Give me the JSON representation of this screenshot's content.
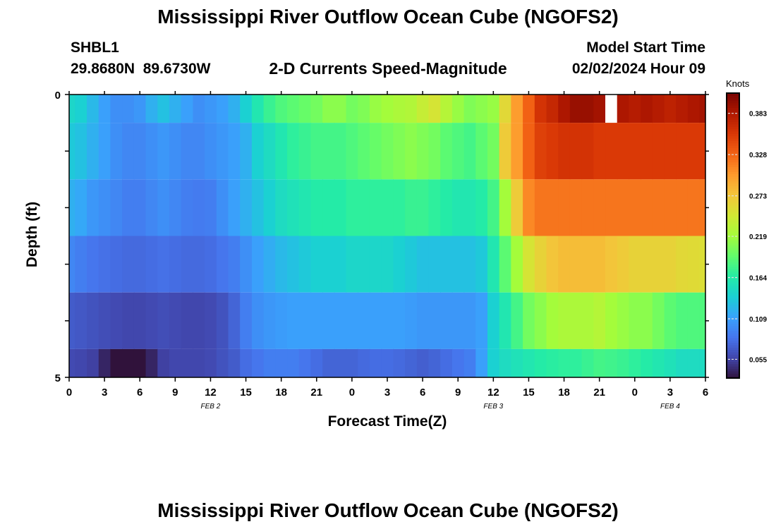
{
  "header": {
    "title": "Mississippi River Outflow Ocean Cube (NGOFS2)",
    "station_id": "SHBL1",
    "coords": "29.8680N  89.6730W",
    "subtitle": "2-D Currents Speed-Magnitude",
    "start_label": "Model Start Time",
    "start_value": "02/02/2024 Hour 09",
    "bottom_title": "Mississippi River Outflow Ocean Cube (NGOFS2)"
  },
  "colors": {
    "scale": [
      "#30123b",
      "#4145ab",
      "#4675ed",
      "#39a2fc",
      "#1bcfd4",
      "#24eca6",
      "#61fc6c",
      "#a4fc3b",
      "#d1e834",
      "#f3c63a",
      "#fe9b2d",
      "#f36315",
      "#d93806",
      "#b11901",
      "#7a0402"
    ]
  },
  "chart_data": {
    "type": "heatmap",
    "title": "2-D Currents Speed-Magnitude",
    "xlabel": "Forecast Time(Z)",
    "ylabel": "Depth (ft)",
    "x_tick_labels": [
      "0",
      "3",
      "6",
      "9",
      "12",
      "15",
      "18",
      "21",
      "0",
      "3",
      "6",
      "9",
      "12",
      "15",
      "18",
      "21",
      "0",
      "3",
      "6"
    ],
    "x_tick_hours": [
      0,
      3,
      6,
      9,
      12,
      15,
      18,
      21,
      24,
      27,
      30,
      33,
      36,
      39,
      42,
      45,
      48,
      51,
      54
    ],
    "date_labels": [
      {
        "label": "FEB 2",
        "hour": 12
      },
      {
        "label": "FEB 3",
        "hour": 36
      },
      {
        "label": "FEB 4",
        "hour": 51
      }
    ],
    "y_tick_labels": [
      "0",
      "5"
    ],
    "ylim": [
      0,
      5
    ],
    "layers": [
      {
        "depth_top": 0.0,
        "depth_bottom": 0.5
      },
      {
        "depth_top": 0.5,
        "depth_bottom": 1.5
      },
      {
        "depth_top": 1.5,
        "depth_bottom": 2.5
      },
      {
        "depth_top": 2.5,
        "depth_bottom": 3.5
      },
      {
        "depth_top": 3.5,
        "depth_bottom": 4.5
      },
      {
        "depth_top": 4.5,
        "depth_bottom": 5.0
      }
    ],
    "hours": [
      0,
      1,
      2,
      3,
      4,
      5,
      6,
      7,
      8,
      9,
      10,
      11,
      12,
      13,
      14,
      15,
      16,
      17,
      18,
      19,
      20,
      21,
      22,
      23,
      24,
      25,
      26,
      27,
      28,
      29,
      30,
      31,
      32,
      33,
      34,
      35,
      36,
      37,
      38,
      39,
      40,
      41,
      42,
      43,
      44,
      45,
      46,
      47,
      48,
      49,
      50,
      51,
      52,
      53,
      54
    ],
    "values": [
      [
        0.145,
        0.14,
        0.125,
        0.11,
        0.1,
        0.1,
        0.105,
        0.12,
        0.13,
        0.12,
        0.11,
        0.1,
        0.105,
        0.11,
        0.12,
        0.14,
        0.16,
        0.175,
        0.185,
        0.19,
        0.195,
        0.2,
        0.21,
        0.21,
        0.2,
        0.205,
        0.215,
        0.22,
        0.225,
        0.228,
        0.24,
        0.25,
        0.23,
        0.215,
        0.205,
        0.21,
        0.215,
        0.26,
        0.3,
        0.33,
        0.36,
        0.37,
        0.385,
        0.395,
        0.395,
        0.39,
        null,
        0.385,
        0.38,
        0.385,
        0.38,
        0.375,
        0.38,
        0.385,
        0.39
      ],
      [
        0.135,
        0.13,
        0.12,
        0.11,
        0.1,
        0.095,
        0.095,
        0.1,
        0.105,
        0.1,
        0.095,
        0.095,
        0.1,
        0.105,
        0.11,
        0.12,
        0.14,
        0.15,
        0.16,
        0.17,
        0.175,
        0.18,
        0.18,
        0.18,
        0.185,
        0.19,
        0.195,
        0.2,
        0.205,
        0.21,
        0.205,
        0.2,
        0.19,
        0.185,
        0.18,
        0.19,
        0.2,
        0.27,
        0.3,
        0.33,
        0.35,
        0.355,
        0.36,
        0.36,
        0.36,
        0.355,
        0.355,
        0.355,
        0.355,
        0.355,
        0.355,
        0.355,
        0.355,
        0.355,
        0.355
      ],
      [
        0.12,
        0.115,
        0.105,
        0.1,
        0.095,
        0.09,
        0.09,
        0.095,
        0.1,
        0.095,
        0.09,
        0.088,
        0.09,
        0.1,
        0.11,
        0.12,
        0.13,
        0.14,
        0.15,
        0.155,
        0.16,
        0.165,
        0.165,
        0.165,
        0.17,
        0.17,
        0.17,
        0.17,
        0.17,
        0.175,
        0.175,
        0.17,
        0.165,
        0.16,
        0.16,
        0.165,
        0.18,
        0.22,
        0.27,
        0.31,
        0.32,
        0.32,
        0.32,
        0.32,
        0.32,
        0.32,
        0.32,
        0.32,
        0.32,
        0.32,
        0.32,
        0.32,
        0.32,
        0.32,
        0.32
      ],
      [
        0.095,
        0.09,
        0.085,
        0.082,
        0.08,
        0.078,
        0.078,
        0.08,
        0.082,
        0.08,
        0.078,
        0.078,
        0.08,
        0.085,
        0.09,
        0.1,
        0.11,
        0.118,
        0.125,
        0.13,
        0.135,
        0.14,
        0.14,
        0.14,
        0.145,
        0.145,
        0.145,
        0.145,
        0.14,
        0.135,
        0.13,
        0.13,
        0.13,
        0.13,
        0.13,
        0.135,
        0.16,
        0.19,
        0.22,
        0.25,
        0.265,
        0.275,
        0.28,
        0.28,
        0.28,
        0.28,
        0.275,
        0.27,
        0.265,
        0.265,
        0.265,
        0.265,
        0.26,
        0.258,
        0.255
      ],
      [
        0.07,
        0.068,
        0.065,
        0.062,
        0.06,
        0.058,
        0.058,
        0.06,
        0.062,
        0.06,
        0.058,
        0.058,
        0.06,
        0.065,
        0.075,
        0.09,
        0.1,
        0.105,
        0.108,
        0.11,
        0.11,
        0.11,
        0.11,
        0.11,
        0.11,
        0.11,
        0.11,
        0.11,
        0.11,
        0.108,
        0.105,
        0.105,
        0.105,
        0.105,
        0.105,
        0.11,
        0.14,
        0.16,
        0.18,
        0.2,
        0.21,
        0.22,
        0.225,
        0.225,
        0.225,
        0.23,
        0.22,
        0.215,
        0.21,
        0.21,
        0.2,
        0.19,
        0.185,
        0.185,
        0.185
      ],
      [
        0.06,
        0.058,
        0.055,
        0.04,
        0.03,
        0.01,
        0.025,
        0.04,
        0.055,
        0.058,
        0.058,
        0.058,
        0.06,
        0.065,
        0.07,
        0.08,
        0.085,
        0.09,
        0.09,
        0.09,
        0.085,
        0.08,
        0.075,
        0.075,
        0.075,
        0.078,
        0.08,
        0.08,
        0.078,
        0.075,
        0.072,
        0.075,
        0.08,
        0.085,
        0.09,
        0.11,
        0.14,
        0.15,
        0.155,
        0.16,
        0.165,
        0.168,
        0.17,
        0.17,
        0.175,
        0.18,
        0.178,
        0.175,
        0.17,
        0.165,
        0.16,
        0.155,
        0.15,
        0.15,
        0.15
      ]
    ],
    "colorbar": {
      "label": "Knots",
      "ticks": [
        "0.383",
        "0.328",
        "0.273",
        "0.219",
        "0.164",
        "0.109",
        "0.055"
      ],
      "range": [
        0.03,
        0.41
      ]
    }
  }
}
